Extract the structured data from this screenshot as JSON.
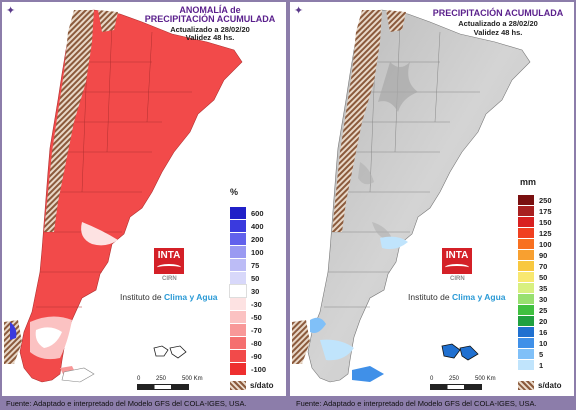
{
  "left": {
    "title_line1": "ANOMALÍA de",
    "title_line2": "PRECIPITACIÓN ACUMULADA",
    "updated": "Actualizado a 28/02/20",
    "validity": "Validez 48 hs.",
    "unit": "%",
    "legend": [
      {
        "label": "600",
        "color": "#2020c8"
      },
      {
        "label": "400",
        "color": "#3a3ade"
      },
      {
        "label": "200",
        "color": "#6262ec"
      },
      {
        "label": "100",
        "color": "#9a9af2"
      },
      {
        "label": "75",
        "color": "#bcbcf6"
      },
      {
        "label": "50",
        "color": "#d8d8fa"
      },
      {
        "label": "30",
        "color": "#ffffff"
      },
      {
        "label": "-30",
        "color": "#fde2e2"
      },
      {
        "label": "-50",
        "color": "#fbc2c2"
      },
      {
        "label": "-70",
        "color": "#f89898"
      },
      {
        "label": "-80",
        "color": "#f56f6f"
      },
      {
        "label": "-90",
        "color": "#f24a4a"
      },
      {
        "label": "-100",
        "color": "#ee2f2f"
      }
    ],
    "nodata_label": "s/dato",
    "footer": "Fuente: Adaptado e interpretado del Modelo GFS del COLA-IGES, USA."
  },
  "right": {
    "title": "PRECIPITACIÓN ACUMULADA",
    "updated": "Actualizado a 28/02/20",
    "validity": "Validez 48 hs.",
    "unit": "mm",
    "legend": [
      {
        "label": "250",
        "color": "#7a1010"
      },
      {
        "label": "175",
        "color": "#a82020"
      },
      {
        "label": "150",
        "color": "#d82020"
      },
      {
        "label": "125",
        "color": "#f04020"
      },
      {
        "label": "100",
        "color": "#f87020"
      },
      {
        "label": "90",
        "color": "#f8a030"
      },
      {
        "label": "70",
        "color": "#f8c840"
      },
      {
        "label": "50",
        "color": "#f8e870"
      },
      {
        "label": "35",
        "color": "#d8f080"
      },
      {
        "label": "30",
        "color": "#98e070"
      },
      {
        "label": "25",
        "color": "#40c040"
      },
      {
        "label": "20",
        "color": "#20a040"
      },
      {
        "label": "16",
        "color": "#2070d0"
      },
      {
        "label": "10",
        "color": "#4090e8"
      },
      {
        "label": "5",
        "color": "#80c0f8"
      },
      {
        "label": "1",
        "color": "#c0e4fc"
      }
    ],
    "nodata_label": "s/dato",
    "footer": "Fuente: Adaptado e interpretado del Modelo GFS del COLA-IGES, USA."
  },
  "logo": {
    "text": "INTA",
    "sub": "CIRN",
    "institute_prefix": "Instituto de ",
    "institute_highlight": "Clima y Agua"
  },
  "scale": {
    "labels": [
      "0",
      "250",
      "500 Km"
    ]
  },
  "colors": {
    "frame": "#8c7daa",
    "title": "#5a1f8c",
    "anomaly_fill": "#f24a4a",
    "relief_fill": "#c8c8c8",
    "andes_nodata": "#8b5a3c"
  }
}
